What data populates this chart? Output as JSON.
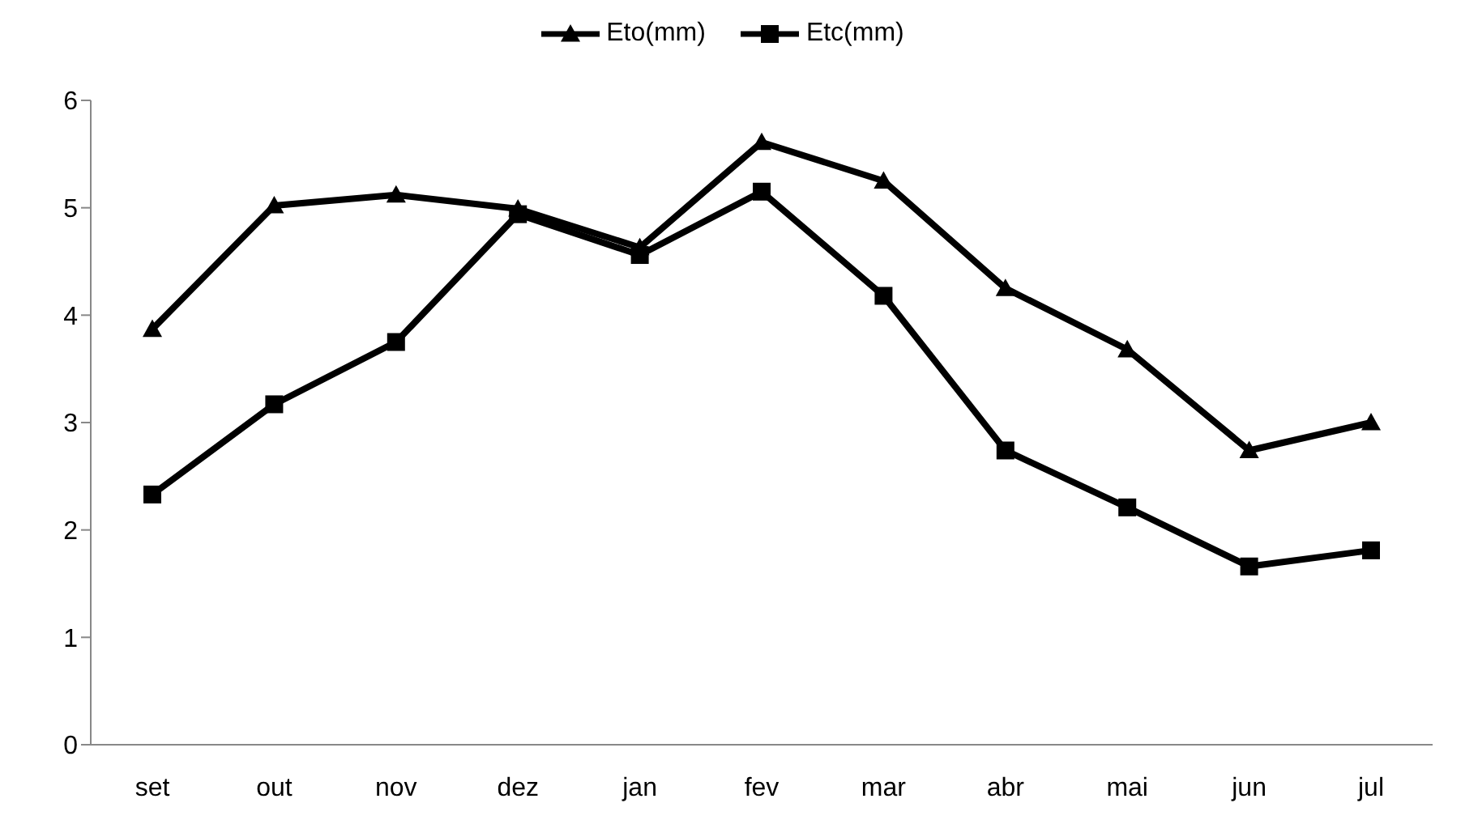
{
  "chart_data": {
    "type": "line",
    "categories": [
      "set",
      "out",
      "nov",
      "dez",
      "jan",
      "fev",
      "mar",
      "abr",
      "mai",
      "jun",
      "jul"
    ],
    "series": [
      {
        "name": "Eto(mm)",
        "color": "#000000",
        "marker": "triangle",
        "values": [
          3.87,
          5.02,
          5.12,
          4.99,
          4.63,
          5.61,
          5.25,
          4.25,
          3.68,
          2.74,
          3.0
        ]
      },
      {
        "name": "Etc(mm)",
        "color": "#000000",
        "marker": "square",
        "values": [
          2.33,
          3.17,
          3.75,
          4.94,
          4.56,
          5.15,
          4.18,
          2.74,
          2.21,
          1.66,
          1.81
        ]
      }
    ],
    "ylim": [
      0,
      6
    ],
    "yticks": [
      0,
      1,
      2,
      3,
      4,
      5,
      6
    ],
    "grid": false,
    "legend": "top",
    "line_style": "solid"
  }
}
